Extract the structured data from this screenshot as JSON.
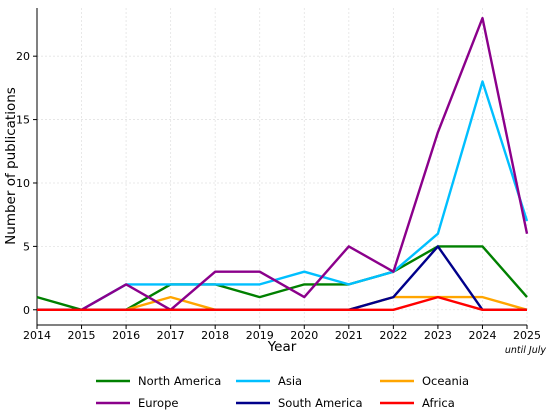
{
  "chart_data": {
    "type": "line",
    "title": "",
    "xlabel": "Year",
    "ylabel": "Number of publications",
    "x_note": "until July",
    "x": [
      2014,
      2015,
      2016,
      2017,
      2018,
      2019,
      2020,
      2021,
      2022,
      2023,
      2024,
      2025
    ],
    "xlim": [
      2014,
      2025
    ],
    "ylim": [
      -1.2,
      23.8
    ],
    "yticks": [
      0,
      5,
      10,
      15,
      20
    ],
    "grid": true,
    "legend_position": "bottom",
    "series": [
      {
        "name": "North America",
        "color": "#008000",
        "values": [
          1,
          0,
          0,
          2,
          2,
          1,
          2,
          2,
          3,
          5,
          5,
          1
        ]
      },
      {
        "name": "Asia",
        "color": "#00bfff",
        "values": [
          0,
          0,
          2,
          2,
          2,
          2,
          3,
          2,
          3,
          6,
          18,
          7
        ]
      },
      {
        "name": "Oceania",
        "color": "#ffa500",
        "values": [
          0,
          0,
          0,
          1,
          0,
          0,
          0,
          0,
          1,
          1,
          1,
          0
        ]
      },
      {
        "name": "Europe",
        "color": "#8b008b",
        "values": [
          0,
          0,
          2,
          0,
          3,
          3,
          1,
          5,
          3,
          14,
          23,
          6
        ]
      },
      {
        "name": "South America",
        "color": "#00008b",
        "values": [
          0,
          0,
          0,
          0,
          0,
          0,
          0,
          0,
          1,
          5,
          0,
          0
        ]
      },
      {
        "name": "Africa",
        "color": "#ff0000",
        "values": [
          0,
          0,
          0,
          0,
          0,
          0,
          0,
          0,
          0,
          1,
          0,
          0
        ]
      }
    ]
  }
}
